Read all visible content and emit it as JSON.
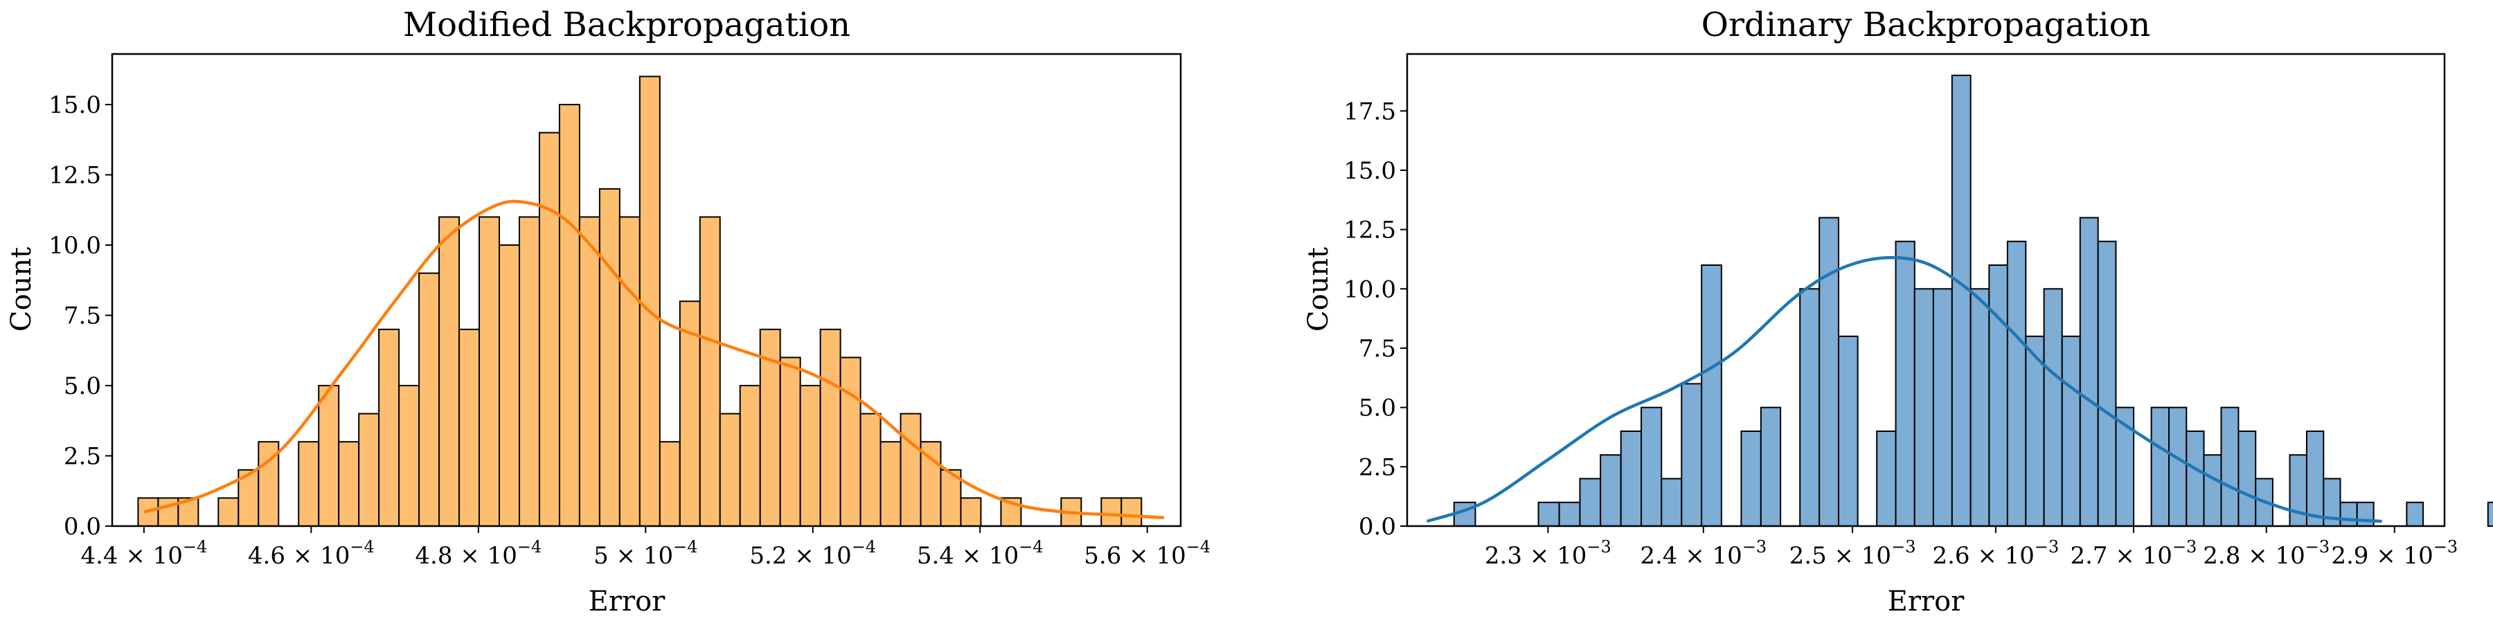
{
  "chart_data": [
    {
      "type": "histogram",
      "title": "Modified Backpropagation",
      "xlabel": "Error",
      "ylabel": "Count",
      "xscale": "linear",
      "xlim": [
        0.0004362,
        0.000564
      ],
      "ylim": [
        0,
        16.8
      ],
      "bar_color": "#fdbf6f",
      "kde_color": "#ff7f0e",
      "bin_start": 0.0004393,
      "bin_width": 2.4e-06,
      "counts": [
        1,
        1,
        1,
        0,
        1,
        2,
        3,
        0,
        3,
        5,
        3,
        4,
        7,
        5,
        9,
        11,
        7,
        11,
        10,
        11,
        14,
        15,
        11,
        12,
        11,
        16,
        3,
        8,
        11,
        4,
        5,
        7,
        6,
        5,
        7,
        6,
        4,
        3,
        4,
        3,
        2,
        1,
        0,
        1,
        0,
        0,
        1,
        0,
        1,
        1
      ],
      "kde": {
        "x": [
          0.00044,
          0.000448,
          0.000456,
          0.000464,
          0.00047,
          0.000476,
          0.000482,
          0.000486,
          0.00049,
          0.000494,
          0.000498,
          0.000502,
          0.000508,
          0.000514,
          0.00052,
          0.000526,
          0.000532,
          0.000538,
          0.000544,
          0.00055,
          0.000556,
          0.000562
        ],
        "y": [
          0.5,
          1.2,
          2.6,
          5.6,
          8.0,
          10.2,
          11.4,
          11.5,
          11.0,
          9.8,
          8.4,
          7.3,
          6.6,
          6.0,
          5.4,
          4.4,
          2.9,
          1.6,
          0.8,
          0.5,
          0.4,
          0.3
        ]
      },
      "xticks": [
        {
          "value": 0.00044,
          "mantissa": "4.4",
          "times": "×",
          "base": "10",
          "exponent": "−4"
        },
        {
          "value": 0.00046,
          "mantissa": "4.6",
          "times": "×",
          "base": "10",
          "exponent": "−4"
        },
        {
          "value": 0.00048,
          "mantissa": "4.8",
          "times": "×",
          "base": "10",
          "exponent": "−4"
        },
        {
          "value": 0.0005,
          "mantissa": "5",
          "times": "×",
          "base": "10",
          "exponent": "−4"
        },
        {
          "value": 0.00052,
          "mantissa": "5.2",
          "times": "×",
          "base": "10",
          "exponent": "−4"
        },
        {
          "value": 0.00054,
          "mantissa": "5.4",
          "times": "×",
          "base": "10",
          "exponent": "−4"
        },
        {
          "value": 0.00056,
          "mantissa": "5.6",
          "times": "×",
          "base": "10",
          "exponent": "−4"
        }
      ],
      "yticks": [
        {
          "value": 0,
          "label": "0.0"
        },
        {
          "value": 2.5,
          "label": "2.5"
        },
        {
          "value": 5,
          "label": "5.0"
        },
        {
          "value": 7.5,
          "label": "7.5"
        },
        {
          "value": 10,
          "label": "10.0"
        },
        {
          "value": 12.5,
          "label": "12.5"
        },
        {
          "value": 15,
          "label": "15.0"
        }
      ]
    },
    {
      "type": "histogram",
      "title": "Ordinary Backpropagation",
      "xlabel": "Error",
      "ylabel": "Count",
      "xscale": "log",
      "xlim": [
        0.002213,
        0.00294
      ],
      "ylim": [
        0,
        19.9
      ],
      "bar_color": "#7eadd5",
      "kde_color": "#1f77b4",
      "bin_start": 0.0022416,
      "bin_width": 1.31e-05,
      "counts": [
        1,
        0,
        0,
        0,
        1,
        1,
        2,
        3,
        4,
        5,
        2,
        6,
        11,
        0,
        4,
        5,
        0,
        10,
        13,
        8,
        0,
        4,
        12,
        10,
        10,
        19,
        10,
        11,
        12,
        8,
        10,
        8,
        13,
        12,
        5,
        0,
        5,
        5,
        4,
        3,
        5,
        4,
        2,
        0,
        3,
        4,
        2,
        1,
        1,
        0,
        0,
        1,
        0,
        0,
        0,
        0,
        1
      ],
      "kde": {
        "x": [
          0.002225,
          0.00226,
          0.0023,
          0.00234,
          0.00238,
          0.00242,
          0.00246,
          0.00249,
          0.00252,
          0.00255,
          0.00258,
          0.00261,
          0.00264,
          0.00268,
          0.00272,
          0.00276,
          0.0028,
          0.00284,
          0.00289
        ],
        "y": [
          0.2,
          1.0,
          2.8,
          4.6,
          5.8,
          7.3,
          9.6,
          10.8,
          11.3,
          11.1,
          10.0,
          8.3,
          6.5,
          4.8,
          3.3,
          2.0,
          1.0,
          0.4,
          0.2
        ]
      },
      "xticks": [
        {
          "value": 0.0023,
          "mantissa": "2.3",
          "times": "×",
          "base": "10",
          "exponent": "−3"
        },
        {
          "value": 0.0024,
          "mantissa": "2.4",
          "times": "×",
          "base": "10",
          "exponent": "−3"
        },
        {
          "value": 0.0025,
          "mantissa": "2.5",
          "times": "×",
          "base": "10",
          "exponent": "−3"
        },
        {
          "value": 0.0026,
          "mantissa": "2.6",
          "times": "×",
          "base": "10",
          "exponent": "−3"
        },
        {
          "value": 0.0027,
          "mantissa": "2.7",
          "times": "×",
          "base": "10",
          "exponent": "−3"
        },
        {
          "value": 0.0028,
          "mantissa": "2.8",
          "times": "×",
          "base": "10",
          "exponent": "−3"
        },
        {
          "value": 0.0029,
          "mantissa": "2.9",
          "times": "×",
          "base": "10",
          "exponent": "−3"
        }
      ],
      "yticks": [
        {
          "value": 0,
          "label": "0.0"
        },
        {
          "value": 2.5,
          "label": "2.5"
        },
        {
          "value": 5,
          "label": "5.0"
        },
        {
          "value": 7.5,
          "label": "7.5"
        },
        {
          "value": 10,
          "label": "10.0"
        },
        {
          "value": 12.5,
          "label": "12.5"
        },
        {
          "value": 15,
          "label": "15.0"
        },
        {
          "value": 17.5,
          "label": "17.5"
        }
      ]
    }
  ]
}
